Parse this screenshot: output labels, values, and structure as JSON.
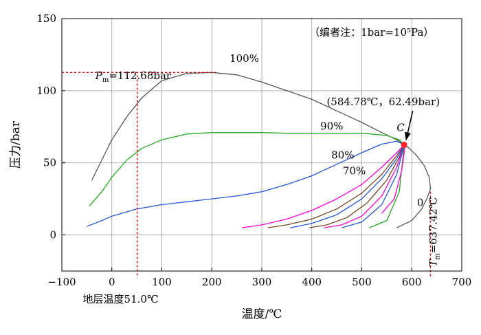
{
  "chart_data": {
    "type": "line",
    "title": "",
    "xlabel": "温度/℃",
    "ylabel": "压力/bar",
    "xlim": [
      -100,
      700
    ],
    "ylim": [
      -25,
      150
    ],
    "xticks": [
      -100,
      0,
      100,
      200,
      300,
      400,
      500,
      600,
      700
    ],
    "yticks": [
      0,
      50,
      100,
      150
    ],
    "xtick_labels": [
      "−100",
      "0",
      "100",
      "200",
      "300",
      "400",
      "500",
      "600",
      "700"
    ],
    "ytick_labels": [
      "0",
      "50",
      "100",
      "150"
    ],
    "grid": true,
    "note": "（编者注：1bar=10⁵Pa）",
    "critical_point": {
      "label": "C",
      "x": 584.78,
      "y": 62.49,
      "text": "(584.78℃，62.49bar)"
    },
    "cricondenbar": {
      "prefix": "P",
      "sub": "m",
      "text": "=112.68bar",
      "x": 210,
      "y": 112.68
    },
    "cricondentherm": {
      "prefix": "T",
      "sub": "m",
      "text": "=637.42℃",
      "x": 637.42,
      "y": 30
    },
    "formation_temp": {
      "text": "地层温度51.0℃",
      "x": 51.0
    },
    "series": [
      {
        "name": "100%",
        "color": "#555555",
        "label_at": [
          265,
          120
        ],
        "x": [
          -40,
          -20,
          0,
          30,
          60,
          100,
          150,
          200,
          250,
          300,
          350,
          400,
          450,
          500,
          540,
          570,
          585
        ],
        "y": [
          38,
          52,
          66,
          82,
          95,
          107,
          112,
          112.68,
          111,
          106,
          100,
          94,
          86,
          78,
          71,
          66,
          62.49
        ]
      },
      {
        "name": "90%",
        "color": "#22aa22",
        "label_at": [
          440,
          73
        ],
        "x": [
          -45,
          -20,
          0,
          30,
          60,
          100,
          150,
          200,
          250,
          300,
          350,
          400,
          450,
          500,
          550,
          575,
          585
        ],
        "y": [
          20,
          30,
          40,
          52,
          60,
          66,
          70,
          71,
          71,
          71,
          70.5,
          70.5,
          70.5,
          70.5,
          69,
          66,
          62.49
        ]
      },
      {
        "name": "80%",
        "color": "#2255dd",
        "label_at": [
          462,
          53
        ],
        "x": [
          -50,
          -20,
          0,
          50,
          100,
          150,
          200,
          250,
          300,
          350,
          400,
          450,
          500,
          540,
          570,
          585
        ],
        "y": [
          6,
          10,
          13,
          18,
          21,
          23,
          25,
          27,
          30,
          35,
          41,
          49,
          57,
          63,
          65,
          62.49
        ]
      },
      {
        "name": "70%",
        "color": "#ff00dd",
        "label_at": [
          485,
          42
        ],
        "x": [
          260,
          300,
          350,
          400,
          450,
          500,
          540,
          570,
          585
        ],
        "y": [
          5,
          7,
          11,
          17,
          25,
          35,
          47,
          57,
          62.49
        ]
      },
      {
        "name": "",
        "color": "#774422",
        "x": [
          312,
          350,
          400,
          450,
          500,
          540,
          570,
          585
        ],
        "y": [
          5,
          7,
          11,
          18,
          29,
          42,
          55,
          62.49
        ]
      },
      {
        "name": "",
        "color": "#2255dd",
        "x": [
          357,
          400,
          450,
          500,
          540,
          570,
          585
        ],
        "y": [
          5,
          8,
          14,
          25,
          39,
          53,
          62.49
        ]
      },
      {
        "name": "",
        "color": "#774422",
        "x": [
          395,
          430,
          470,
          510,
          550,
          575,
          585
        ],
        "y": [
          5,
          7,
          12,
          22,
          38,
          54,
          62.49
        ]
      },
      {
        "name": "",
        "color": "#ff00dd",
        "x": [
          425,
          460,
          500,
          540,
          570,
          585
        ],
        "y": [
          5,
          7,
          13,
          27,
          47,
          62.49
        ]
      },
      {
        "name": "",
        "color": "#2255dd",
        "x": [
          460,
          500,
          540,
          570,
          585
        ],
        "y": [
          5,
          9,
          21,
          42,
          62.49
        ]
      },
      {
        "name": "",
        "color": "#22aa22",
        "x": [
          515,
          550,
          575,
          585
        ],
        "y": [
          5,
          10,
          30,
          62.49
        ]
      },
      {
        "name": "",
        "color": "#ff00dd",
        "x": [
          540,
          565,
          580,
          587
        ],
        "y": [
          15,
          25,
          45,
          62.49
        ]
      },
      {
        "name": "0",
        "color": "#555555",
        "label_at": [
          617,
          20
        ],
        "x": [
          570,
          600,
          620,
          630,
          637.42,
          635,
          625,
          610,
          595,
          585
        ],
        "y": [
          5,
          10,
          18,
          25,
          32,
          40,
          48,
          55,
          60,
          62.49
        ]
      }
    ]
  }
}
